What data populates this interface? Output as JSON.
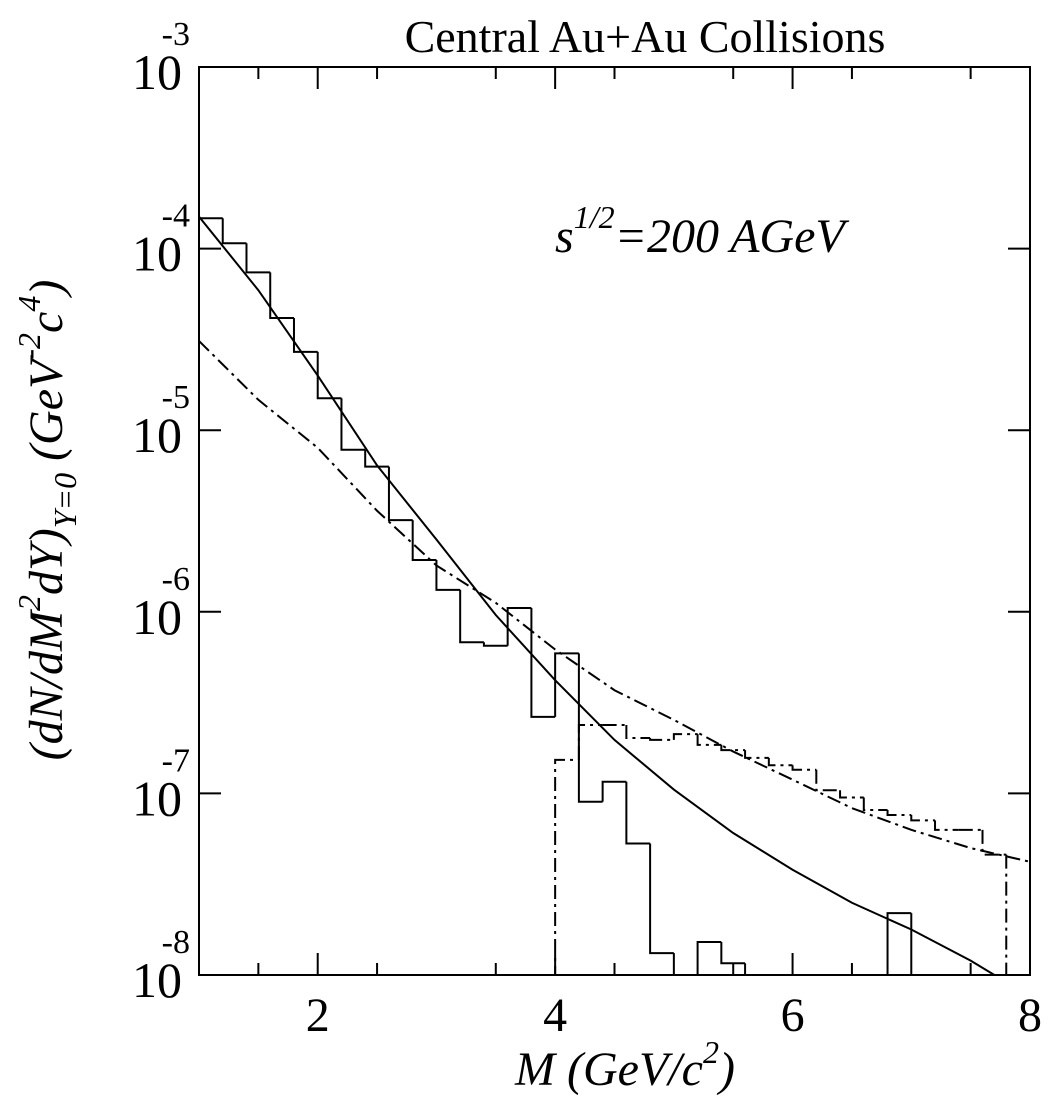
{
  "chart_data": {
    "type": "histogram",
    "title": "Central Au+Au Collisions",
    "annotation": {
      "base": "s",
      "exponent": "1/2",
      "text": "=200 AGeV"
    },
    "xlabel": [
      "M (GeV/c",
      "2",
      ")"
    ],
    "ylabel": [
      "(dN/dM",
      "2",
      "dY)",
      "Y=0",
      " (GeV",
      "-2",
      "c",
      "4",
      ")"
    ],
    "xlim": [
      1,
      8
    ],
    "ylim": [
      1e-08,
      0.001
    ],
    "log_y": true,
    "xticks": [
      2,
      4,
      6,
      8
    ],
    "xminorticks": [
      1.5,
      2.5,
      3.5,
      4.5,
      5.5,
      6.5,
      7.5
    ],
    "yticks": [
      {
        "value": 1e-08,
        "label": "10",
        "exponent": "-8"
      },
      {
        "value": 1e-07,
        "label": "10",
        "exponent": "-7"
      },
      {
        "value": 1e-06,
        "label": "10",
        "exponent": "-6"
      },
      {
        "value": 1e-05,
        "label": "10",
        "exponent": "-5"
      },
      {
        "value": 0.0001,
        "label": "10",
        "exponent": "-4"
      },
      {
        "value": 0.001,
        "label": "10",
        "exponent": "-3"
      }
    ],
    "histograms": [
      {
        "color": "#000000",
        "style": "solid",
        "bins": [
          1.0,
          1.2,
          1.4,
          1.6,
          1.8,
          2.0,
          2.2,
          2.4,
          2.6,
          2.8,
          3.0,
          3.2,
          3.4,
          3.6,
          3.8,
          4.0,
          4.2,
          4.4,
          4.6,
          4.8,
          5.0,
          5.2,
          5.4,
          5.6,
          5.8,
          6.0,
          6.2,
          6.4,
          6.6,
          6.8,
          7.0
        ],
        "counts": [
          0.000147,
          0.000107,
          7.4e-05,
          4.15e-05,
          2.7e-05,
          1.5e-05,
          7.8e-06,
          6.3e-06,
          3.2e-06,
          1.93e-06,
          1.32e-06,
          6.8e-07,
          6.5e-07,
          1.05e-06,
          2.64e-07,
          5.9e-07,
          9e-08,
          1.16e-07,
          5.3e-08,
          1.32e-08,
          null,
          1.52e-08,
          1.16e-08,
          null,
          null,
          null,
          null,
          null,
          1e-08,
          2.19e-08
        ]
      },
      {
        "color": "#000000",
        "style": "dashdot",
        "bins": [
          4.0,
          4.2,
          4.4,
          4.6,
          4.8,
          5.0,
          5.2,
          5.4,
          5.6,
          5.8,
          6.0,
          6.2,
          6.4,
          6.6,
          6.8,
          7.0,
          7.2,
          7.4,
          7.6,
          7.8
        ],
        "counts": [
          1.53e-07,
          2.38e-07,
          2.38e-07,
          2.02e-07,
          1.97e-07,
          2.12e-07,
          1.85e-07,
          1.73e-07,
          1.57e-07,
          1.43e-07,
          1.35e-07,
          1.04e-07,
          9.5e-08,
          8.1e-08,
          7.6e-08,
          7.1e-08,
          6.3e-08,
          6.3e-08,
          4.6e-08
        ]
      }
    ],
    "curves": [
      {
        "color": "#000000",
        "style": "solid",
        "x": [
          1.0,
          1.5,
          2.0,
          2.5,
          3.0,
          3.5,
          4.0,
          4.5,
          5.0,
          5.5,
          6.0,
          6.5,
          7.0,
          7.5,
          7.7
        ],
        "values": [
          0.00015,
          5.9e-05,
          2e-05,
          6.4e-06,
          2.5e-06,
          9.6e-07,
          4.2e-07,
          1.97e-07,
          1.05e-07,
          6.05e-08,
          3.8e-08,
          2.5e-08,
          1.78e-08,
          1.2e-08,
          1e-08
        ]
      },
      {
        "color": "#000000",
        "style": "dashdot",
        "x": [
          1.0,
          1.5,
          2.0,
          2.5,
          3.0,
          3.5,
          4.0,
          4.5,
          5.0,
          5.5,
          6.0,
          6.5,
          7.0,
          7.5,
          8.0
        ],
        "values": [
          3.1e-05,
          1.47e-05,
          8e-06,
          3.6e-06,
          1.8e-06,
          1.12e-06,
          6.2e-07,
          3.7e-07,
          2.54e-07,
          1.7e-07,
          1.19e-07,
          8.3e-08,
          6.3e-08,
          5e-08,
          4.2e-08
        ]
      }
    ]
  }
}
